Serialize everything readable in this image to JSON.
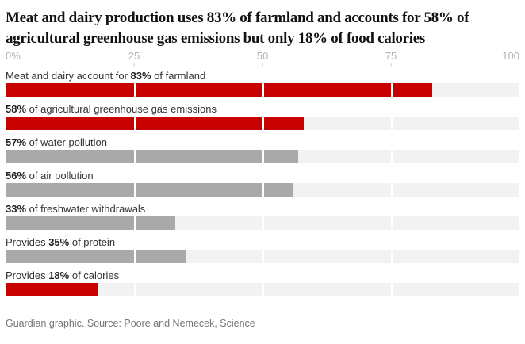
{
  "title": "Meat and dairy production uses 83% of farmland and accounts for 58% of agricultural greenhouse gas emissions but only 18% of food calories",
  "axis": {
    "ticks": [
      "0%",
      "25",
      "50",
      "75",
      "100"
    ]
  },
  "rows": [
    {
      "prefix": "Meat and dairy account for ",
      "bold": "83%",
      "suffix": " of farmland",
      "value": 83,
      "color": "#c70000"
    },
    {
      "prefix": "",
      "bold": "58%",
      "suffix": " of agricultural greenhouse gas emissions",
      "value": 58,
      "color": "#c70000"
    },
    {
      "prefix": "",
      "bold": "57%",
      "suffix": " of water pollution",
      "value": 57,
      "color": "#a9a9a9"
    },
    {
      "prefix": "",
      "bold": "56%",
      "suffix": " of air pollution",
      "value": 56,
      "color": "#a9a9a9"
    },
    {
      "prefix": "",
      "bold": "33%",
      "suffix": " of freshwater withdrawals",
      "value": 33,
      "color": "#a9a9a9"
    },
    {
      "prefix": "Provides ",
      "bold": "35%",
      "suffix": " of protein",
      "value": 35,
      "color": "#a9a9a9"
    },
    {
      "prefix": "Provides ",
      "bold": "18%",
      "suffix": " of calories",
      "value": 18,
      "color": "#c70000"
    }
  ],
  "footer": "Guardian graphic. Source: Poore and Nemecek, Science",
  "colors": {
    "accent_red": "#c70000",
    "bar_gray": "#a9a9a9",
    "track": "#f2f2f2",
    "axis_text": "#b3b3b3",
    "title_text": "#121212",
    "label_text": "#333333",
    "footer_text": "#767676",
    "rule": "#d9d9d9"
  },
  "chart_data": {
    "type": "bar",
    "orientation": "horizontal",
    "title": "Meat and dairy production uses 83% of farmland and accounts for 58% of agricultural greenhouse gas emissions but only 18% of food calories",
    "categories": [
      "Meat and dairy account for 83% of farmland",
      "58% of agricultural greenhouse gas emissions",
      "57% of water pollution",
      "56% of air pollution",
      "33% of freshwater withdrawals",
      "Provides 35% of protein",
      "Provides 18% of calories"
    ],
    "values": [
      83,
      58,
      57,
      56,
      33,
      35,
      18
    ],
    "bar_colors": [
      "#c70000",
      "#c70000",
      "#a9a9a9",
      "#a9a9a9",
      "#a9a9a9",
      "#a9a9a9",
      "#c70000"
    ],
    "xlabel": "",
    "ylabel": "",
    "xlim": [
      0,
      100
    ],
    "x_ticks": [
      "0%",
      "25",
      "50",
      "75",
      "100"
    ],
    "grid": "white vertical separators at 25, 50, 75 across bars and tracks",
    "legend": "none",
    "source": "Guardian graphic. Source: Poore and Nemecek, Science"
  }
}
